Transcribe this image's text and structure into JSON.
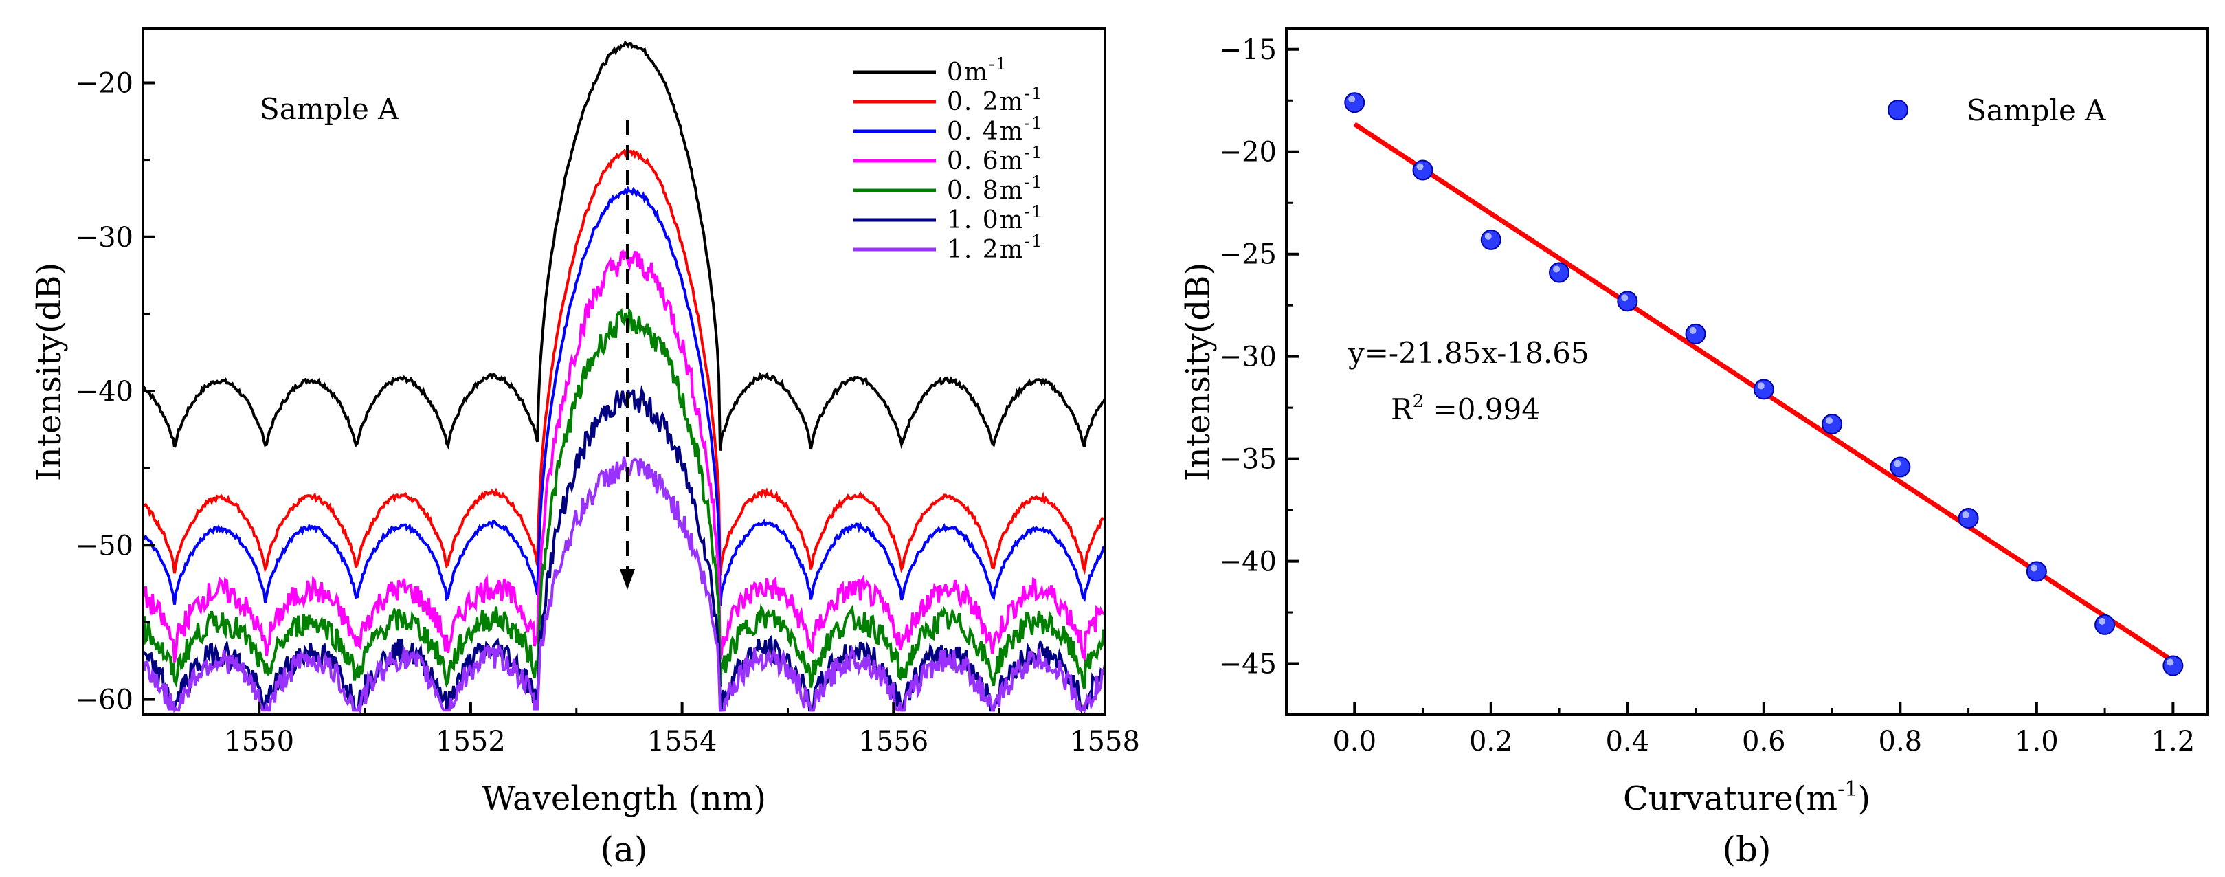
{
  "panel_a": {
    "label": "(a)",
    "annotation": "Sample A",
    "xlabel": "Wavelength (nm)",
    "ylabel": "Intensity(dB)",
    "x_ticks": [
      "1550",
      "1552",
      "1554",
      "1556",
      "1558"
    ],
    "y_ticks": [
      "-20",
      "-30",
      "-40",
      "-50",
      "-60"
    ]
  },
  "panel_b": {
    "label": "(b)",
    "legend": "Sample A",
    "xlabel": "Curvature(m",
    "xlabel_sup": "-1",
    "xlabel_close": ")",
    "ylabel": "Intensity(dB)",
    "x_ticks": [
      "0.0",
      "0.2",
      "0.4",
      "0.6",
      "0.8",
      "1.0",
      "1.2"
    ],
    "y_ticks": [
      "-15",
      "-20",
      "-25",
      "-30",
      "-35",
      "-40",
      "-45"
    ],
    "fit_equation": "y=-21.85x-18.65",
    "r2_label": "R",
    "r2_sup": "2",
    "r2_value": " =0.994"
  },
  "chart_data": [
    {
      "type": "line",
      "xlabel": "Wavelength (nm)",
      "ylabel": "Intensity(dB)",
      "xlim": [
        1548.9,
        1558
      ],
      "ylim": [
        -61,
        -16.5
      ],
      "legend_position": "top-right",
      "annotation": "Sample A",
      "series": [
        {
          "name": "0m-1",
          "label": "0m",
          "sup": "-1",
          "color": "#000000",
          "peak": -17.5,
          "side": -40,
          "floor": -42
        },
        {
          "name": "0.2m-1",
          "label": "0. 2m",
          "sup": "-1",
          "color": "#ff0000",
          "peak": -24.5,
          "side": -47,
          "floor": -50
        },
        {
          "name": "0.4m-1",
          "label": "0. 4m",
          "sup": "-1",
          "color": "#0000ff",
          "peak": -27,
          "side": -49,
          "floor": -52
        },
        {
          "name": "0.6m-1",
          "label": "0. 6m",
          "sup": "-1",
          "color": "#ff00ff",
          "peak": -31.5,
          "side": -53,
          "floor": -55
        },
        {
          "name": "0.8m-1",
          "label": "0. 8m",
          "sup": "-1",
          "color": "#008000",
          "peak": -35.5,
          "side": -55,
          "floor": -57
        },
        {
          "name": "1.0m-1",
          "label": "1. 0m",
          "sup": "-1",
          "color": "#000080",
          "peak": -40.5,
          "side": -57,
          "floor": -59
        },
        {
          "name": "1.2m-1",
          "label": "1. 2m",
          "sup": "-1",
          "color": "#9932ff",
          "peak": -45,
          "side": -57.5,
          "floor": -59.5
        }
      ],
      "arrow": {
        "x": 1553.5,
        "y_from": -19.5,
        "y_to": -56
      }
    },
    {
      "type": "scatter",
      "xlabel": "Curvature(m-1)",
      "ylabel": "Intensity(dB)",
      "xlim": [
        -0.1,
        1.25
      ],
      "ylim": [
        -47.5,
        -14
      ],
      "legend_position": "top-right",
      "series": [
        {
          "name": "Sample A",
          "color": "#0000ff",
          "x": [
            0.0,
            0.1,
            0.2,
            0.3,
            0.4,
            0.5,
            0.6,
            0.7,
            0.8,
            0.9,
            1.0,
            1.1,
            1.2
          ],
          "y": [
            -17.6,
            -20.9,
            -24.3,
            -25.9,
            -27.3,
            -28.9,
            -31.6,
            -33.3,
            -35.4,
            -37.9,
            -40.5,
            -43.1,
            -45.1
          ]
        }
      ],
      "fit": {
        "slope": -21.85,
        "intercept": -18.65,
        "x_range": [
          0.0,
          1.2
        ],
        "color": "#ff0000",
        "r2": 0.994
      }
    }
  ]
}
